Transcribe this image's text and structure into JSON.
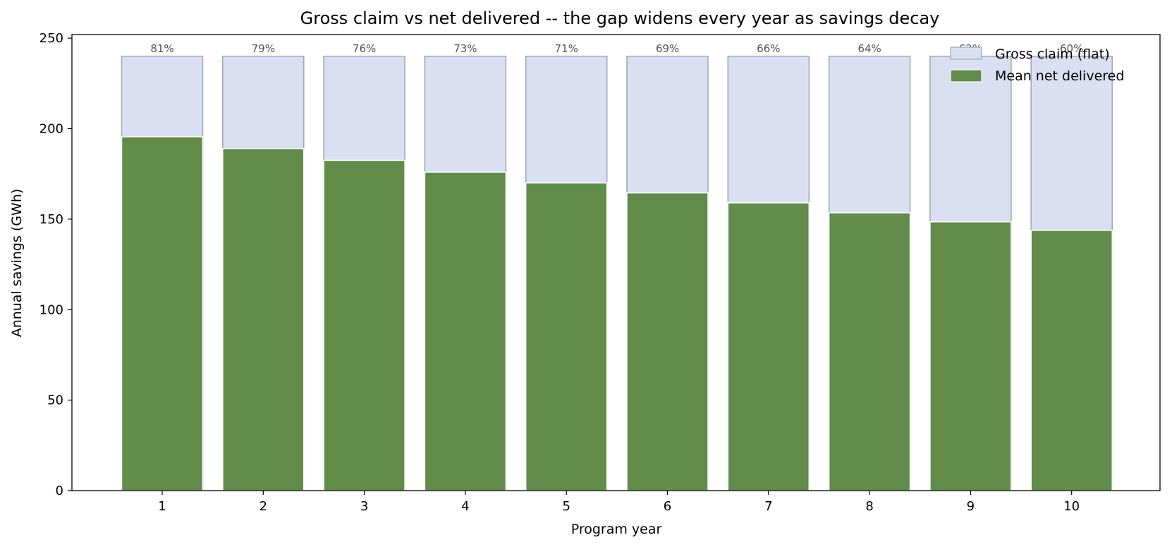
{
  "chart_data": {
    "type": "bar",
    "title": "Gross claim vs net delivered -- the gap widens every year as savings decay",
    "xlabel": "Program year",
    "ylabel": "Annual savings  (GWh)",
    "categories": [
      "1",
      "2",
      "3",
      "4",
      "5",
      "6",
      "7",
      "8",
      "9",
      "10"
    ],
    "ylim": [
      0,
      252
    ],
    "yticks": [
      "0",
      "50",
      "100",
      "150",
      "200",
      "250"
    ],
    "series": [
      {
        "name": "Gross claim (flat)",
        "values": [
          240,
          240,
          240,
          240,
          240,
          240,
          240,
          240,
          240,
          240
        ],
        "color": "#dae0f2",
        "edge_color": "#97a9b5"
      },
      {
        "name": "Mean net delivered",
        "values": [
          195.5,
          189,
          182.5,
          176,
          170,
          164.5,
          159,
          153.5,
          148.5,
          143.8
        ],
        "color": "#618c49",
        "edge_color": "#ffffff"
      }
    ],
    "data_labels": [
      "81%",
      "79%",
      "76%",
      "73%",
      "71%",
      "69%",
      "66%",
      "64%",
      "62%",
      "60%"
    ],
    "legend_position": "top-right",
    "grid": false
  }
}
